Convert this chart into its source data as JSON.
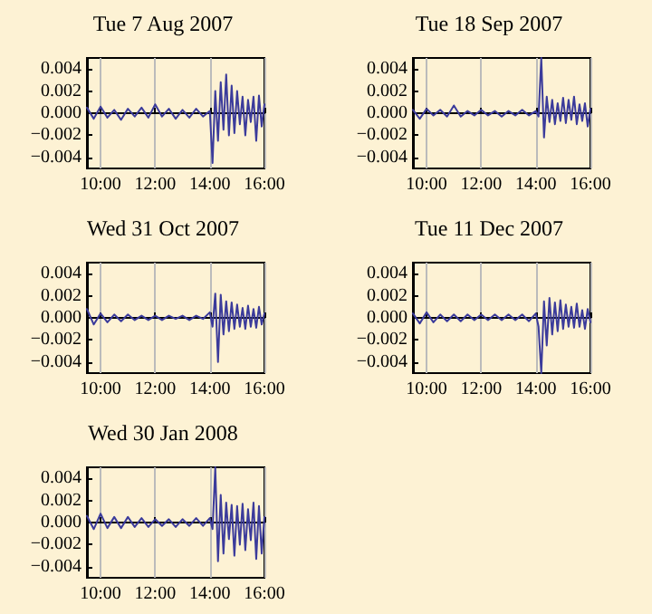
{
  "chart_data": [
    {
      "type": "line",
      "title": "Tue 7 Aug 2007",
      "grid": "x",
      "xlim": [
        9.5,
        16
      ],
      "ylim": [
        -0.005,
        0.005
      ],
      "xticks": [
        {
          "value": 10,
          "label": "10:00"
        },
        {
          "value": 12,
          "label": "12:00"
        },
        {
          "value": 14,
          "label": "14:00"
        },
        {
          "value": 16,
          "label": "16:00"
        }
      ],
      "yticks": [
        {
          "value": -0.004,
          "label": "−0.004"
        },
        {
          "value": -0.002,
          "label": "−0.002"
        },
        {
          "value": 0,
          "label": "0.000"
        },
        {
          "value": 0.002,
          "label": "0.002"
        },
        {
          "value": 0.004,
          "label": "0.004"
        }
      ],
      "x": [
        9.5,
        9.75,
        10,
        10.25,
        10.5,
        10.75,
        11,
        11.25,
        11.5,
        11.75,
        12,
        12.25,
        12.5,
        12.75,
        13,
        13.25,
        13.5,
        13.75,
        14,
        14.1,
        14.2,
        14.3,
        14.4,
        14.5,
        14.6,
        14.7,
        14.8,
        14.9,
        15,
        15.1,
        15.2,
        15.3,
        15.4,
        15.5,
        15.6,
        15.7,
        15.8,
        15.9,
        16
      ],
      "series": [
        {
          "color": "#3b3b9b",
          "values": [
            0.0005,
            -0.0005,
            0.0006,
            -0.0004,
            0.0003,
            -0.0006,
            0.0004,
            -0.0003,
            0.0005,
            -0.0004,
            0.0008,
            -0.0003,
            0.0004,
            -0.0005,
            0.0003,
            -0.0004,
            0.0004,
            -0.0003,
            0.0002,
            -0.0045,
            0.002,
            -0.0025,
            0.0028,
            -0.0015,
            0.0035,
            -0.002,
            0.0025,
            -0.0018,
            0.002,
            -0.001,
            0.0015,
            -0.002,
            0.0012,
            -0.0008,
            0.0015,
            -0.0025,
            0.0016,
            -0.0012,
            0.0008
          ]
        }
      ]
    },
    {
      "type": "line",
      "title": "Tue 18 Sep 2007",
      "grid": "x",
      "xlim": [
        9.5,
        16
      ],
      "ylim": [
        -0.005,
        0.005
      ],
      "xticks": [
        {
          "value": 10,
          "label": "10:00"
        },
        {
          "value": 12,
          "label": "12:00"
        },
        {
          "value": 14,
          "label": "14:00"
        },
        {
          "value": 16,
          "label": "16:00"
        }
      ],
      "yticks": [
        {
          "value": -0.004,
          "label": "−0.004"
        },
        {
          "value": -0.002,
          "label": "−0.002"
        },
        {
          "value": 0,
          "label": "0.000"
        },
        {
          "value": 0.002,
          "label": "0.002"
        },
        {
          "value": 0.004,
          "label": "0.004"
        }
      ],
      "x": [
        9.5,
        9.75,
        10,
        10.25,
        10.5,
        10.75,
        11,
        11.25,
        11.5,
        11.75,
        12,
        12.25,
        12.5,
        12.75,
        13,
        13.25,
        13.5,
        13.75,
        14,
        14.1,
        14.2,
        14.3,
        14.4,
        14.5,
        14.6,
        14.7,
        14.8,
        14.9,
        15,
        15.1,
        15.2,
        15.3,
        15.4,
        15.5,
        15.6,
        15.7,
        15.8,
        15.9,
        16
      ],
      "series": [
        {
          "color": "#3b3b9b",
          "values": [
            0.0003,
            -0.0005,
            0.0004,
            -0.0002,
            0.0003,
            -0.0003,
            0.0007,
            -0.0003,
            0.0002,
            -0.0002,
            0.0003,
            -0.0002,
            0.0002,
            -0.0003,
            0.0002,
            -0.0002,
            0.0003,
            -0.0002,
            0.0002,
            -0.0003,
            0.005,
            -0.0022,
            0.0015,
            -0.0008,
            0.0012,
            -0.001,
            0.0009,
            -0.0007,
            0.0014,
            -0.0009,
            0.0012,
            -0.0006,
            0.0015,
            -0.001,
            0.0008,
            -0.0007,
            0.0009,
            -0.0012,
            0.0004
          ]
        }
      ]
    },
    {
      "type": "line",
      "title": "Wed 31 Oct 2007",
      "grid": "x",
      "xlim": [
        9.5,
        16
      ],
      "ylim": [
        -0.005,
        0.005
      ],
      "xticks": [
        {
          "value": 10,
          "label": "10:00"
        },
        {
          "value": 12,
          "label": "12:00"
        },
        {
          "value": 14,
          "label": "14:00"
        },
        {
          "value": 16,
          "label": "16:00"
        }
      ],
      "yticks": [
        {
          "value": -0.004,
          "label": "−0.004"
        },
        {
          "value": -0.002,
          "label": "−0.002"
        },
        {
          "value": 0,
          "label": "0.000"
        },
        {
          "value": 0.002,
          "label": "0.002"
        },
        {
          "value": 0.004,
          "label": "0.004"
        }
      ],
      "x": [
        9.5,
        9.75,
        10,
        10.25,
        10.5,
        10.75,
        11,
        11.25,
        11.5,
        11.75,
        12,
        12.25,
        12.5,
        12.75,
        13,
        13.25,
        13.5,
        13.75,
        14,
        14.1,
        14.2,
        14.3,
        14.4,
        14.5,
        14.6,
        14.7,
        14.8,
        14.9,
        15,
        15.1,
        15.2,
        15.3,
        15.4,
        15.5,
        15.6,
        15.7,
        15.8,
        15.9,
        16
      ],
      "series": [
        {
          "color": "#3b3b9b",
          "values": [
            0.0008,
            -0.0006,
            0.0004,
            -0.0004,
            0.0003,
            -0.0003,
            0.0003,
            -0.0002,
            0.0002,
            -0.0002,
            0.0002,
            -0.0002,
            0.0002,
            -0.0001,
            0.0002,
            -0.0002,
            0.0002,
            -0.0001,
            0.0005,
            -0.0008,
            0.0022,
            -0.004,
            0.0021,
            -0.0015,
            0.0015,
            -0.0012,
            0.0014,
            -0.001,
            0.0012,
            -0.0008,
            0.0009,
            -0.001,
            0.0011,
            -0.0008,
            0.0008,
            -0.0009,
            0.001,
            -0.0006,
            0.0004
          ]
        }
      ]
    },
    {
      "type": "line",
      "title": "Tue 11 Dec 2007",
      "grid": "x",
      "xlim": [
        9.5,
        16
      ],
      "ylim": [
        -0.005,
        0.005
      ],
      "xticks": [
        {
          "value": 10,
          "label": "10:00"
        },
        {
          "value": 12,
          "label": "12:00"
        },
        {
          "value": 14,
          "label": "14:00"
        },
        {
          "value": 16,
          "label": "16:00"
        }
      ],
      "yticks": [
        {
          "value": -0.004,
          "label": "−0.004"
        },
        {
          "value": -0.002,
          "label": "−0.002"
        },
        {
          "value": 0,
          "label": "0.000"
        },
        {
          "value": 0.002,
          "label": "0.002"
        },
        {
          "value": 0.004,
          "label": "0.004"
        }
      ],
      "x": [
        9.5,
        9.75,
        10,
        10.25,
        10.5,
        10.75,
        11,
        11.25,
        11.5,
        11.75,
        12,
        12.25,
        12.5,
        12.75,
        13,
        13.25,
        13.5,
        13.75,
        14,
        14.1,
        14.2,
        14.3,
        14.4,
        14.5,
        14.6,
        14.7,
        14.8,
        14.9,
        15,
        15.1,
        15.2,
        15.3,
        15.4,
        15.5,
        15.6,
        15.7,
        15.8,
        15.9,
        16
      ],
      "series": [
        {
          "color": "#3b3b9b",
          "values": [
            0.0004,
            -0.0005,
            0.0005,
            -0.0004,
            0.0003,
            -0.0003,
            0.0003,
            -0.0003,
            0.0003,
            -0.0002,
            0.0003,
            -0.0002,
            0.0003,
            -0.0002,
            0.0003,
            -0.0002,
            0.0003,
            -0.0003,
            0.0004,
            -0.0008,
            -0.005,
            0.0015,
            -0.0025,
            0.0018,
            -0.0015,
            0.0014,
            -0.0012,
            0.0016,
            -0.001,
            0.0012,
            -0.0008,
            0.001,
            -0.0009,
            0.0013,
            -0.0008,
            0.0007,
            -0.001,
            0.0008,
            -0.0004
          ]
        }
      ]
    },
    {
      "type": "line",
      "title": "Wed 30 Jan 2008",
      "grid": "x",
      "xlim": [
        9.5,
        16
      ],
      "ylim": [
        -0.005,
        0.005
      ],
      "xticks": [
        {
          "value": 10,
          "label": "10:00"
        },
        {
          "value": 12,
          "label": "12:00"
        },
        {
          "value": 14,
          "label": "14:00"
        },
        {
          "value": 16,
          "label": "16:00"
        }
      ],
      "yticks": [
        {
          "value": -0.004,
          "label": "−0.004"
        },
        {
          "value": -0.002,
          "label": "−0.002"
        },
        {
          "value": 0,
          "label": "0.000"
        },
        {
          "value": 0.002,
          "label": "0.002"
        },
        {
          "value": 0.004,
          "label": "0.004"
        }
      ],
      "x": [
        9.5,
        9.75,
        10,
        10.25,
        10.5,
        10.75,
        11,
        11.25,
        11.5,
        11.75,
        12,
        12.25,
        12.5,
        12.75,
        13,
        13.25,
        13.5,
        13.75,
        14,
        14.1,
        14.2,
        14.3,
        14.4,
        14.5,
        14.6,
        14.7,
        14.8,
        14.9,
        15,
        15.1,
        15.2,
        15.3,
        15.4,
        15.5,
        15.6,
        15.7,
        15.8,
        15.9,
        16
      ],
      "series": [
        {
          "color": "#3b3b9b",
          "values": [
            0.0006,
            -0.0006,
            0.0008,
            -0.0005,
            0.0005,
            -0.0005,
            0.0005,
            -0.0004,
            0.0004,
            -0.0004,
            0.0003,
            -0.0003,
            0.0003,
            -0.0004,
            0.0003,
            -0.0003,
            0.0004,
            -0.0003,
            0.0004,
            -0.0006,
            0.005,
            -0.0035,
            0.0025,
            -0.0028,
            0.0018,
            -0.0015,
            0.0016,
            -0.003,
            0.0015,
            -0.002,
            0.0017,
            -0.0025,
            0.0012,
            -0.0016,
            0.0018,
            -0.0033,
            0.0015,
            -0.0028,
            0.0005
          ]
        }
      ]
    }
  ]
}
